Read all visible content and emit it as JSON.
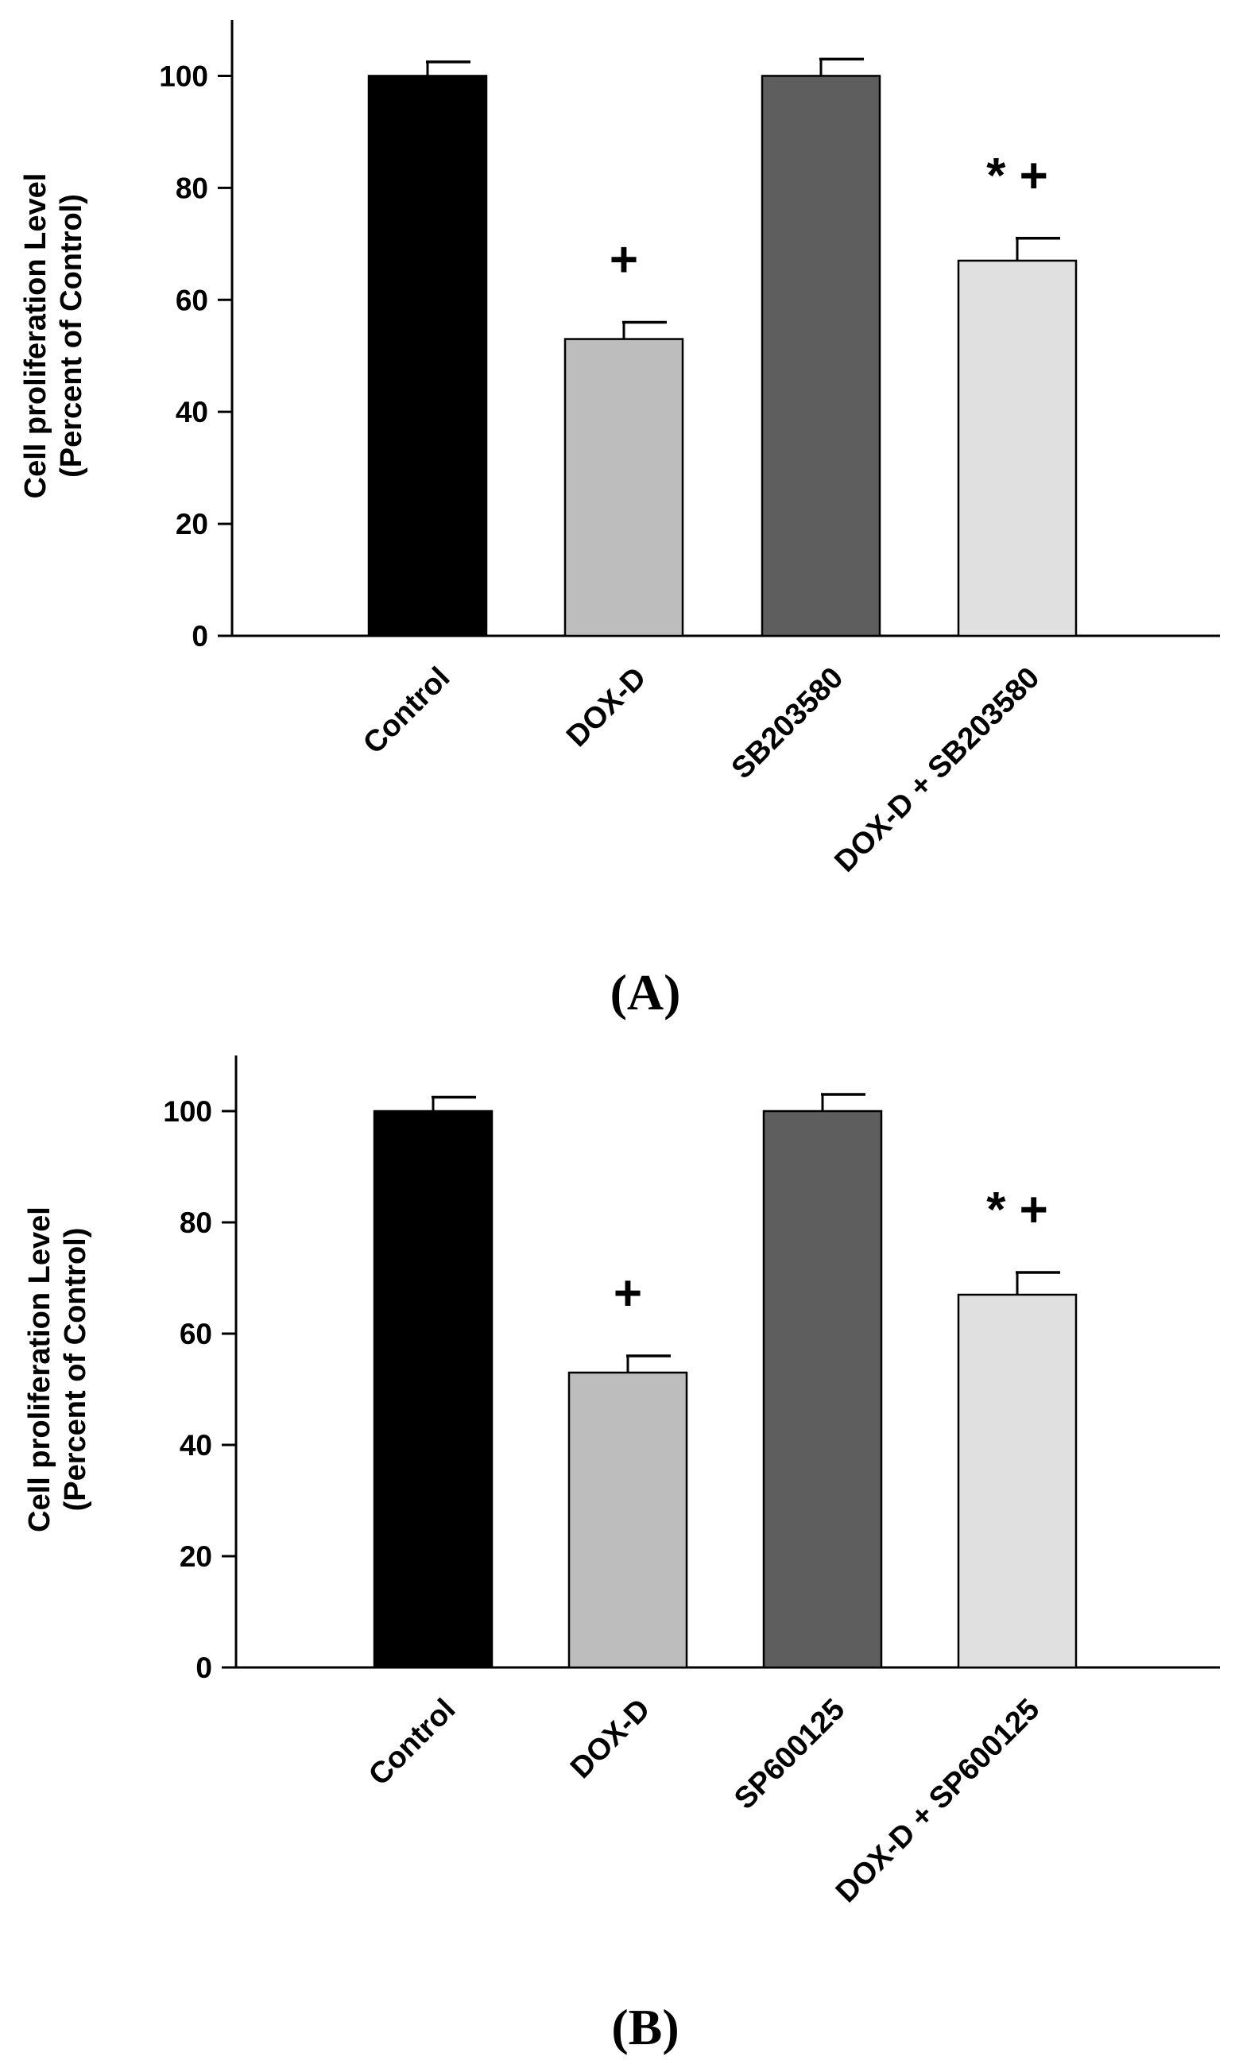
{
  "chart_data": [
    {
      "type": "bar",
      "panel_label": "(A)",
      "categories": [
        "Control",
        "DOX-D",
        "SB203580",
        "DOX-D + SB203580"
      ],
      "values": [
        100,
        53,
        100,
        67
      ],
      "errors": [
        2.5,
        3,
        3,
        4
      ],
      "significance": [
        "",
        "+",
        "",
        "* +"
      ],
      "colors": [
        "#000000",
        "#bdbdbd",
        "#5e5e5e",
        "#e0e0e0"
      ],
      "ylabel": "Cell proliferation Level",
      "ylabel2": "(Percent of Control)",
      "yticks": [
        0,
        20,
        40,
        60,
        80,
        100
      ],
      "ylim": [
        0,
        110
      ]
    },
    {
      "type": "bar",
      "panel_label": "(B)",
      "categories": [
        "Control",
        "DOX-D",
        "SP600125",
        "DOX-D + SP600125"
      ],
      "values": [
        100,
        53,
        100,
        67
      ],
      "errors": [
        2.5,
        3,
        3,
        4
      ],
      "significance": [
        "",
        "+",
        "",
        "* +"
      ],
      "colors": [
        "#000000",
        "#bdbdbd",
        "#5e5e5e",
        "#e0e0e0"
      ],
      "ylabel": "Cell proliferation Level",
      "ylabel2": "(Percent of Control)",
      "yticks": [
        0,
        20,
        40,
        60,
        80,
        100
      ],
      "ylim": [
        0,
        110
      ]
    }
  ]
}
